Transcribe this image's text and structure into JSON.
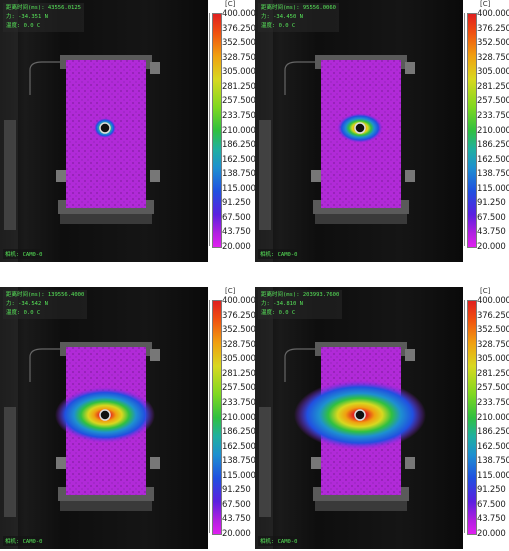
{
  "colorbar": {
    "unit": "[C]",
    "ticks": [
      "400.000",
      "376.250",
      "352.500",
      "328.750",
      "305.000",
      "281.250",
      "257.500",
      "233.750",
      "210.000",
      "186.250",
      "162.500",
      "138.750",
      "115.000",
      "91.250",
      "67.500",
      "43.750",
      "20.000"
    ],
    "colors": [
      "#e02020",
      "#f0a010",
      "#d8d820",
      "#30c040",
      "#1e90d0",
      "#2050e0",
      "#b020e0",
      "#e020f0"
    ]
  },
  "panels": [
    {
      "line1": "距离时间(ms): 43556.0125",
      "line2": "力: -34.351 N",
      "line3": "温度: 0.0 C",
      "camera": "相机: CAM0-0",
      "spot": "small"
    },
    {
      "line1": "距离时间(ms): 95556.0060",
      "line2": "力: -34.450 N",
      "line3": "温度: 0.0 C",
      "camera": "相机: CAM0-0",
      "spot": "medium"
    },
    {
      "line1": "距离时间(ms): 139556.4000",
      "line2": "力: -34.542 N",
      "line3": "温度: 0.0 C",
      "camera": "相机: CAM0-0",
      "spot": "large"
    },
    {
      "line1": "距离时间(ms): 203993.7600",
      "line2": "力: -34.810 N",
      "line3": "温度: 0.0 C",
      "camera": "相机: CAM0-0",
      "spot": "xlarge"
    }
  ]
}
